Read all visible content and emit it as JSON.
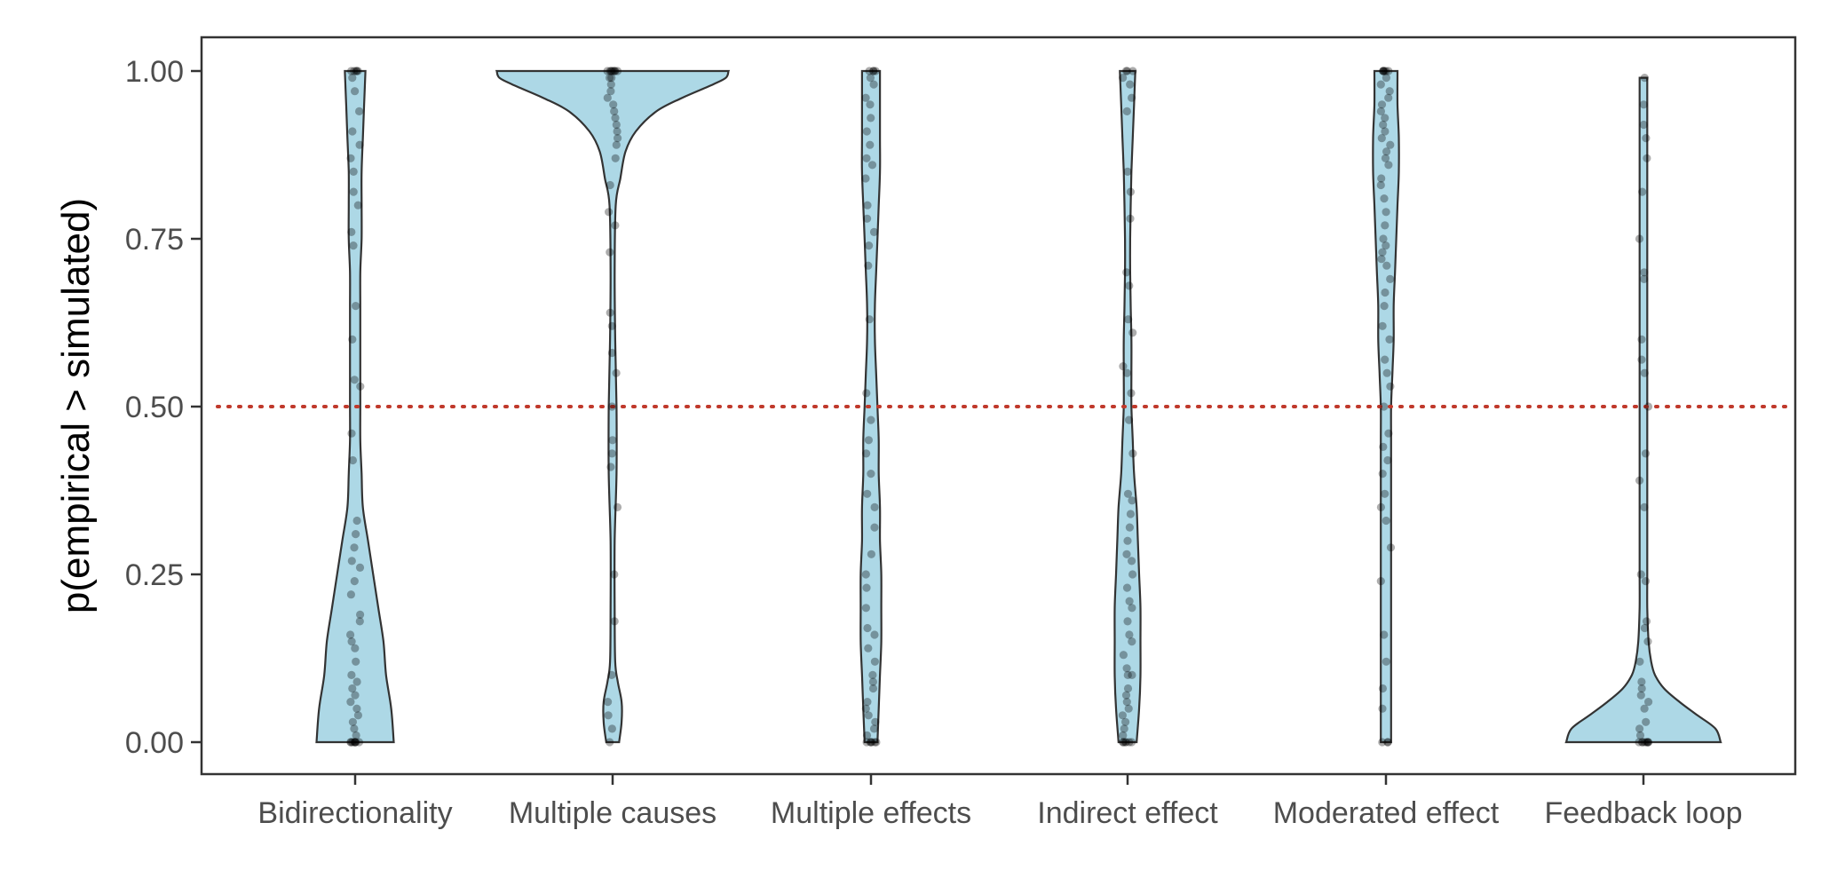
{
  "chart_data": {
    "type": "violin",
    "ylabel": "p(empirical > simulated)",
    "xlabel": "",
    "ylim": [
      0,
      1
    ],
    "yticks": [
      "0.00",
      "0.25",
      "0.50",
      "0.75",
      "1.00"
    ],
    "ytick_values": [
      0,
      0.25,
      0.5,
      0.75,
      1.0
    ],
    "categories": [
      "Bidirectionality",
      "Multiple causes",
      "Multiple effects",
      "Indirect effect",
      "Moderated effect",
      "Feedback loop"
    ],
    "reference_line": {
      "y": 0.5,
      "style": "dotted",
      "color": "#c0392b"
    },
    "colors": {
      "violin_fill": "#add8e6",
      "violin_stroke": "#333333",
      "points": "#000000"
    },
    "grid": false,
    "violin_profiles": [
      {
        "name": "Bidirectionality",
        "y": [
          0,
          0.05,
          0.1,
          0.15,
          0.2,
          0.25,
          0.3,
          0.35,
          0.4,
          0.45,
          0.5,
          0.55,
          0.6,
          0.65,
          0.7,
          0.75,
          0.8,
          0.85,
          0.9,
          0.95,
          1.0
        ],
        "half_width": [
          0.15,
          0.14,
          0.12,
          0.11,
          0.09,
          0.07,
          0.05,
          0.03,
          0.025,
          0.02,
          0.02,
          0.02,
          0.02,
          0.02,
          0.02,
          0.025,
          0.025,
          0.025,
          0.03,
          0.035,
          0.04
        ]
      },
      {
        "name": "Multiple causes",
        "y": [
          0,
          0.03,
          0.06,
          0.09,
          0.12,
          0.2,
          0.3,
          0.4,
          0.5,
          0.6,
          0.7,
          0.8,
          0.84,
          0.88,
          0.91,
          0.94,
          0.96,
          0.98,
          0.99,
          1.0
        ],
        "half_width": [
          0.025,
          0.035,
          0.035,
          0.02,
          0.01,
          0.008,
          0.008,
          0.015,
          0.015,
          0.01,
          0.008,
          0.012,
          0.03,
          0.05,
          0.09,
          0.17,
          0.27,
          0.39,
          0.44,
          0.45
        ]
      },
      {
        "name": "Multiple effects",
        "y": [
          0,
          0.05,
          0.1,
          0.15,
          0.2,
          0.25,
          0.3,
          0.35,
          0.4,
          0.45,
          0.5,
          0.55,
          0.6,
          0.65,
          0.7,
          0.75,
          0.8,
          0.85,
          0.9,
          0.95,
          1.0
        ],
        "half_width": [
          0.025,
          0.03,
          0.035,
          0.04,
          0.04,
          0.04,
          0.035,
          0.035,
          0.03,
          0.03,
          0.025,
          0.02,
          0.015,
          0.015,
          0.02,
          0.025,
          0.03,
          0.035,
          0.035,
          0.035,
          0.035
        ]
      },
      {
        "name": "Indirect effect",
        "y": [
          0,
          0.05,
          0.1,
          0.15,
          0.2,
          0.25,
          0.3,
          0.35,
          0.4,
          0.45,
          0.5,
          0.55,
          0.6,
          0.65,
          0.7,
          0.75,
          0.8,
          0.85,
          0.9,
          0.95,
          1.0
        ],
        "half_width": [
          0.035,
          0.045,
          0.05,
          0.05,
          0.05,
          0.045,
          0.04,
          0.035,
          0.025,
          0.02,
          0.015,
          0.015,
          0.015,
          0.012,
          0.01,
          0.01,
          0.012,
          0.015,
          0.02,
          0.025,
          0.03
        ]
      },
      {
        "name": "Moderated effect",
        "y": [
          0,
          0.05,
          0.1,
          0.15,
          0.2,
          0.25,
          0.3,
          0.35,
          0.4,
          0.45,
          0.5,
          0.55,
          0.6,
          0.65,
          0.7,
          0.75,
          0.8,
          0.85,
          0.9,
          0.95,
          1.0
        ],
        "half_width": [
          0.02,
          0.02,
          0.02,
          0.02,
          0.02,
          0.02,
          0.02,
          0.02,
          0.02,
          0.02,
          0.02,
          0.025,
          0.03,
          0.03,
          0.035,
          0.04,
          0.045,
          0.05,
          0.05,
          0.045,
          0.045
        ]
      },
      {
        "name": "Feedback loop",
        "y": [
          0,
          0.02,
          0.04,
          0.06,
          0.08,
          0.1,
          0.12,
          0.15,
          0.2,
          0.25,
          0.3,
          0.4,
          0.5,
          0.6,
          0.7,
          0.8,
          0.9,
          0.95,
          0.99
        ],
        "half_width": [
          0.3,
          0.28,
          0.21,
          0.14,
          0.08,
          0.045,
          0.03,
          0.02,
          0.015,
          0.015,
          0.015,
          0.015,
          0.015,
          0.015,
          0.015,
          0.015,
          0.015,
          0.015,
          0.015
        ]
      }
    ],
    "points": [
      {
        "name": "Bidirectionality",
        "values": [
          0,
          0,
          0,
          0,
          0,
          0,
          0,
          0,
          0.01,
          0.02,
          0.03,
          0.04,
          0.05,
          0.06,
          0.07,
          0.08,
          0.09,
          0.1,
          0.12,
          0.14,
          0.15,
          0.16,
          0.18,
          0.19,
          0.22,
          0.24,
          0.26,
          0.27,
          0.29,
          0.31,
          0.33,
          0.42,
          0.46,
          0.53,
          0.54,
          0.6,
          0.65,
          0.74,
          0.76,
          0.8,
          0.82,
          0.85,
          0.87,
          0.89,
          0.91,
          0.94,
          0.97,
          0.99,
          1.0,
          1.0,
          1.0,
          1.0,
          1.0
        ]
      },
      {
        "name": "Multiple causes",
        "values": [
          0,
          0.02,
          0.04,
          0.06,
          0.1,
          0.18,
          0.25,
          0.35,
          0.41,
          0.43,
          0.45,
          0.5,
          0.55,
          0.58,
          0.62,
          0.64,
          0.73,
          0.77,
          0.79,
          0.83,
          0.87,
          0.89,
          0.9,
          0.91,
          0.92,
          0.93,
          0.94,
          0.95,
          0.96,
          0.97,
          0.98,
          0.99,
          0.99,
          1.0,
          1.0,
          1.0,
          1.0,
          1.0,
          1.0,
          1.0,
          1.0
        ]
      },
      {
        "name": "Multiple effects",
        "values": [
          0,
          0,
          0,
          0,
          0,
          0,
          0.01,
          0.02,
          0.03,
          0.04,
          0.05,
          0.06,
          0.08,
          0.09,
          0.1,
          0.12,
          0.14,
          0.16,
          0.17,
          0.2,
          0.23,
          0.25,
          0.28,
          0.32,
          0.35,
          0.37,
          0.4,
          0.43,
          0.45,
          0.48,
          0.52,
          0.63,
          0.71,
          0.74,
          0.76,
          0.78,
          0.8,
          0.84,
          0.86,
          0.87,
          0.89,
          0.91,
          0.93,
          0.95,
          0.96,
          0.98,
          0.99,
          1.0,
          1.0,
          1.0,
          1.0
        ]
      },
      {
        "name": "Indirect effect",
        "values": [
          0,
          0,
          0,
          0,
          0,
          0,
          0.01,
          0.02,
          0.03,
          0.04,
          0.05,
          0.06,
          0.07,
          0.08,
          0.1,
          0.1,
          0.11,
          0.13,
          0.15,
          0.16,
          0.18,
          0.2,
          0.21,
          0.23,
          0.25,
          0.27,
          0.28,
          0.3,
          0.32,
          0.34,
          0.36,
          0.37,
          0.43,
          0.48,
          0.52,
          0.55,
          0.56,
          0.61,
          0.63,
          0.68,
          0.7,
          0.78,
          0.82,
          0.85,
          0.94,
          0.96,
          0.98,
          0.99,
          1.0,
          1.0,
          1.0
        ]
      },
      {
        "name": "Moderated effect",
        "values": [
          0,
          0,
          0,
          0.05,
          0.08,
          0.12,
          0.16,
          0.24,
          0.29,
          0.33,
          0.35,
          0.37,
          0.4,
          0.42,
          0.44,
          0.46,
          0.5,
          0.53,
          0.55,
          0.57,
          0.6,
          0.62,
          0.65,
          0.67,
          0.69,
          0.71,
          0.72,
          0.73,
          0.74,
          0.75,
          0.77,
          0.79,
          0.81,
          0.83,
          0.84,
          0.86,
          0.87,
          0.88,
          0.89,
          0.9,
          0.91,
          0.92,
          0.93,
          0.94,
          0.95,
          0.96,
          0.97,
          0.98,
          0.99,
          1.0,
          1.0,
          1.0,
          1.0,
          1.0,
          1.0
        ]
      },
      {
        "name": "Feedback loop",
        "values": [
          0,
          0,
          0,
          0,
          0,
          0,
          0,
          0,
          0.01,
          0.02,
          0.03,
          0.05,
          0.06,
          0.07,
          0.08,
          0.09,
          0.12,
          0.15,
          0.17,
          0.18,
          0.24,
          0.25,
          0.35,
          0.39,
          0.43,
          0.5,
          0.55,
          0.57,
          0.6,
          0.69,
          0.7,
          0.75,
          0.82,
          0.87,
          0.9,
          0.92,
          0.95,
          0.99
        ]
      }
    ]
  }
}
